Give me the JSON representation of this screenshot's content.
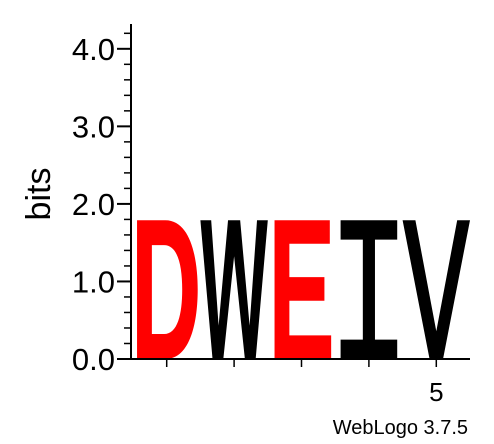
{
  "chart_data": {
    "type": "sequence-logo",
    "ylabel": "bits",
    "ylim": [
      0,
      4.32
    ],
    "major_ticks": [
      0.0,
      1.0,
      2.0,
      3.0,
      4.0
    ],
    "major_tick_labels": [
      "0.0",
      "1.0",
      "2.0",
      "3.0",
      "4.0"
    ],
    "minor_tick_step": 0.2,
    "x_tick_positions": [
      1,
      2,
      3,
      4,
      5
    ],
    "x_tick_labels": [
      {
        "position": 5,
        "label": "5"
      }
    ],
    "positions": [
      {
        "position": 1,
        "letter": "D",
        "bits": 1.79,
        "color": "#ff0000"
      },
      {
        "position": 2,
        "letter": "W",
        "bits": 1.79,
        "color": "#000000"
      },
      {
        "position": 3,
        "letter": "E",
        "bits": 1.79,
        "color": "#ff0000"
      },
      {
        "position": 4,
        "letter": "I",
        "bits": 1.79,
        "color": "#000000"
      },
      {
        "position": 5,
        "letter": "V",
        "bits": 1.79,
        "color": "#000000"
      }
    ]
  },
  "footer": {
    "credit": "WebLogo 3.7.5"
  }
}
